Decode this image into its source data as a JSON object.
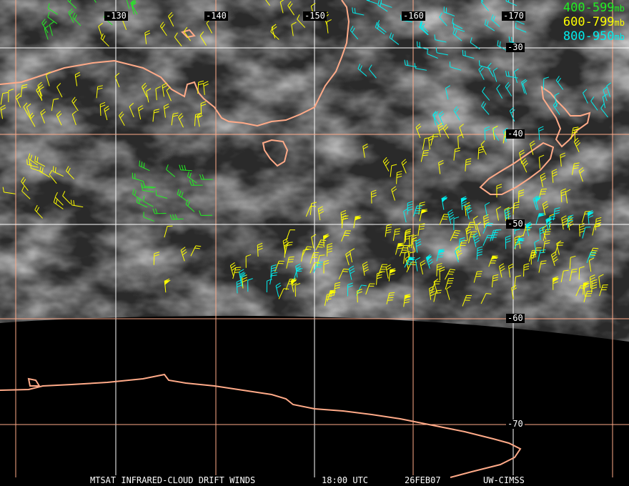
{
  "title": "MTSAT INFRARED-CLOUD DRIFT WINDS",
  "caption": {
    "product": "MTSAT INFRARED-CLOUD DRIFT WINDS",
    "time": "18:00 UTC",
    "date": "26FEB07",
    "source": "UW-CIMSS"
  },
  "legend": [
    {
      "range": "400-599",
      "unit": "mb",
      "color": "#22ee22"
    },
    {
      "range": "600-799",
      "unit": "mb",
      "color": "#ffff00"
    },
    {
      "range": "800-950",
      "unit": "mb",
      "color": "#00eeee"
    }
  ],
  "grid": {
    "longitudes": [
      "-130",
      "-140",
      "-150",
      "-160",
      "-170"
    ],
    "latitudes": [
      "-30",
      "-40",
      "-50",
      "-60",
      "-70"
    ],
    "line_colors": {
      "white": "#ffffff",
      "peach": "#ffaa88"
    }
  },
  "coastline_color": "#ffaa88"
}
